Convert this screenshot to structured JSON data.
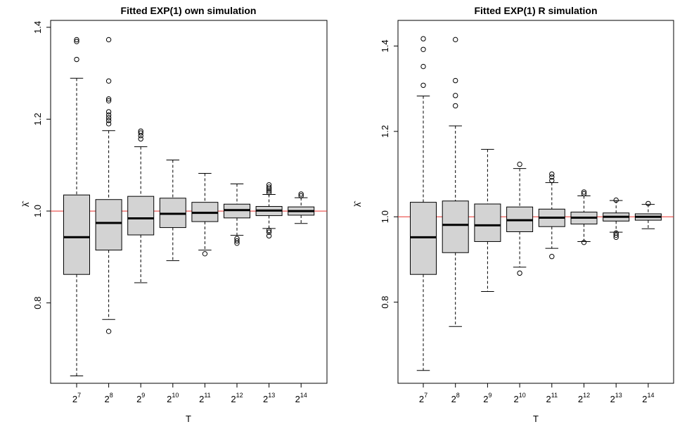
{
  "chart_data": [
    {
      "type": "box",
      "title": "Fitted EXP(1) own simulation",
      "xlabel": "T",
      "ylabel": "λ̂",
      "ylim": [
        0.625,
        1.415
      ],
      "yticks": [
        0.8,
        1.0,
        1.2,
        1.4
      ],
      "ytick_labels": [
        "0.8",
        "1.0",
        "1.2",
        "1.4"
      ],
      "reference_line": {
        "y": 1.0,
        "color": "#e8322f"
      },
      "categories": [
        {
          "base": "2",
          "exp": "7"
        },
        {
          "base": "2",
          "exp": "8"
        },
        {
          "base": "2",
          "exp": "9"
        },
        {
          "base": "2",
          "exp": "10"
        },
        {
          "base": "2",
          "exp": "11"
        },
        {
          "base": "2",
          "exp": "12"
        },
        {
          "base": "2",
          "exp": "13"
        },
        {
          "base": "2",
          "exp": "14"
        }
      ],
      "boxes": [
        {
          "whisker_low": 0.641,
          "q1": 0.862,
          "median": 0.943,
          "q3": 1.035,
          "whisker_high": 1.289,
          "outliers": [
            1.33,
            1.369,
            1.373
          ]
        },
        {
          "whisker_low": 0.764,
          "q1": 0.915,
          "median": 0.974,
          "q3": 1.025,
          "whisker_high": 1.175,
          "outliers": [
            0.738,
            1.19,
            1.197,
            1.203,
            1.209,
            1.216,
            1.24,
            1.244,
            1.283,
            1.373
          ]
        },
        {
          "whisker_low": 0.844,
          "q1": 0.948,
          "median": 0.984,
          "q3": 1.032,
          "whisker_high": 1.14,
          "outliers": [
            1.157,
            1.164,
            1.17,
            1.174
          ]
        },
        {
          "whisker_low": 0.892,
          "q1": 0.964,
          "median": 0.994,
          "q3": 1.028,
          "whisker_high": 1.111,
          "outliers": []
        },
        {
          "whisker_low": 0.915,
          "q1": 0.977,
          "median": 0.996,
          "q3": 1.019,
          "whisker_high": 1.082,
          "outliers": [
            0.907
          ]
        },
        {
          "whisker_low": 0.947,
          "q1": 0.985,
          "median": 1.002,
          "q3": 1.015,
          "whisker_high": 1.059,
          "outliers": [
            0.93,
            0.935,
            0.94
          ]
        },
        {
          "whisker_low": 0.962,
          "q1": 0.99,
          "median": 1.001,
          "q3": 1.01,
          "whisker_high": 1.036,
          "outliers": [
            0.946,
            0.954,
            0.958,
            1.04,
            1.044,
            1.048,
            1.052,
            1.057
          ]
        },
        {
          "whisker_low": 0.973,
          "q1": 0.991,
          "median": 1.0,
          "q3": 1.009,
          "whisker_high": 1.029,
          "outliers": [
            1.033,
            1.037
          ]
        }
      ]
    },
    {
      "type": "box",
      "title": "Fitted EXP(1) R simulation",
      "xlabel": "T",
      "ylabel": "λ̂",
      "ylim": [
        0.61,
        1.46
      ],
      "yticks": [
        0.8,
        1.0,
        1.2,
        1.4
      ],
      "ytick_labels": [
        "0.8",
        "1.0",
        "1.2",
        "1.4"
      ],
      "reference_line": {
        "y": 1.0,
        "color": "#e8322f"
      },
      "categories": [
        {
          "base": "2",
          "exp": "7"
        },
        {
          "base": "2",
          "exp": "8"
        },
        {
          "base": "2",
          "exp": "9"
        },
        {
          "base": "2",
          "exp": "10"
        },
        {
          "base": "2",
          "exp": "11"
        },
        {
          "base": "2",
          "exp": "12"
        },
        {
          "base": "2",
          "exp": "13"
        },
        {
          "base": "2",
          "exp": "14"
        }
      ],
      "boxes": [
        {
          "whisker_low": 0.64,
          "q1": 0.865,
          "median": 0.952,
          "q3": 1.034,
          "whisker_high": 1.283,
          "outliers": [
            1.308,
            1.352,
            1.392,
            1.417
          ]
        },
        {
          "whisker_low": 0.743,
          "q1": 0.916,
          "median": 0.981,
          "q3": 1.037,
          "whisker_high": 1.213,
          "outliers": [
            1.26,
            1.284,
            1.319,
            1.415
          ]
        },
        {
          "whisker_low": 0.825,
          "q1": 0.942,
          "median": 0.98,
          "q3": 1.03,
          "whisker_high": 1.158,
          "outliers": []
        },
        {
          "whisker_low": 0.882,
          "q1": 0.965,
          "median": 0.992,
          "q3": 1.023,
          "whisker_high": 1.113,
          "outliers": [
            0.868,
            1.123
          ]
        },
        {
          "whisker_low": 0.926,
          "q1": 0.977,
          "median": 0.998,
          "q3": 1.018,
          "whisker_high": 1.08,
          "outliers": [
            0.907,
            1.085,
            1.093,
            1.1
          ]
        },
        {
          "whisker_low": 0.942,
          "q1": 0.983,
          "median": 0.998,
          "q3": 1.011,
          "whisker_high": 1.049,
          "outliers": [
            0.94,
            1.054,
            1.058
          ]
        },
        {
          "whisker_low": 0.964,
          "q1": 0.99,
          "median": 1.0,
          "q3": 1.009,
          "whisker_high": 1.038,
          "outliers": [
            0.952,
            0.957,
            0.962,
            1.039
          ]
        },
        {
          "whisker_low": 0.972,
          "q1": 0.992,
          "median": 1.0,
          "q3": 1.007,
          "whisker_high": 1.029,
          "outliers": [
            1.031
          ]
        }
      ]
    }
  ]
}
